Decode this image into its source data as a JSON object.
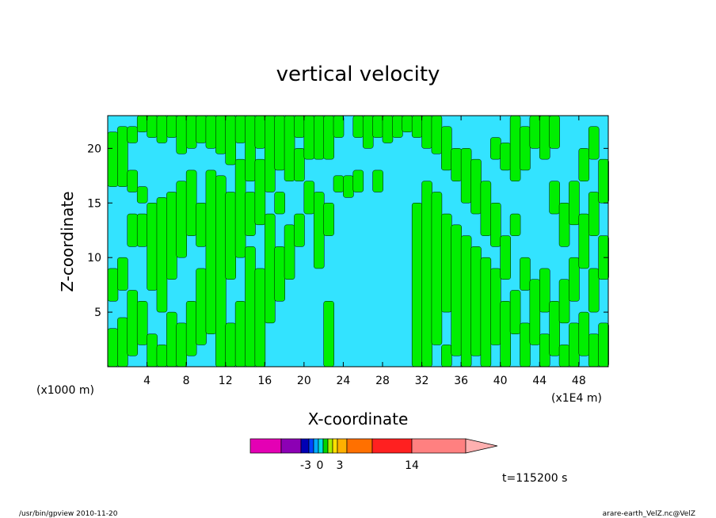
{
  "chart_data": {
    "type": "heatmap",
    "title": "vertical velocity",
    "xlabel": "X-coordinate",
    "ylabel": "Z-coordinate",
    "x_unit_label": "(x1E4 m)",
    "y_unit_label": "(x1000 m)",
    "xlim": [
      0,
      51
    ],
    "ylim": [
      0,
      23
    ],
    "x_ticks": [
      4,
      8,
      12,
      16,
      20,
      24,
      28,
      32,
      36,
      40,
      44,
      48
    ],
    "y_ticks": [
      5,
      10,
      15,
      20
    ],
    "timestamp": "t=115200 s",
    "colorbar": {
      "colors": [
        "#e400b4",
        "#8c00b4",
        "#0000b4",
        "#0044ff",
        "#00aaff",
        "#00e0e0",
        "#00d500",
        "#aaee00",
        "#ffe000",
        "#ffb000",
        "#ff7000",
        "#ff2020",
        "#ff8080",
        "#ffb0b0"
      ],
      "tick_labels": [
        "-3",
        "0",
        "3",
        "14"
      ],
      "tick_values": [
        -3,
        0,
        3,
        14
      ]
    },
    "field_colors": {
      "negative": "#33e3ff",
      "positive": "#00ef00",
      "contour": "#000000"
    },
    "columns": [
      {
        "x": 0,
        "bands": [
          [
            0,
            3.5
          ],
          [
            6,
            9
          ],
          [
            16.5,
            21.5
          ]
        ]
      },
      {
        "x": 1,
        "bands": [
          [
            0,
            4.5
          ],
          [
            7,
            10
          ],
          [
            16.5,
            22
          ]
        ]
      },
      {
        "x": 2,
        "bands": [
          [
            1,
            7
          ],
          [
            11,
            14
          ],
          [
            16,
            18
          ],
          [
            20.5,
            22
          ]
        ]
      },
      {
        "x": 3,
        "bands": [
          [
            2,
            6
          ],
          [
            11,
            14
          ],
          [
            15,
            16.5
          ],
          [
            21.5,
            23
          ]
        ]
      },
      {
        "x": 4,
        "bands": [
          [
            0,
            3
          ],
          [
            7,
            15
          ],
          [
            21,
            23
          ]
        ]
      },
      {
        "x": 5,
        "bands": [
          [
            0,
            2
          ],
          [
            5,
            15.5
          ],
          [
            20.5,
            23
          ]
        ]
      },
      {
        "x": 6,
        "bands": [
          [
            0,
            5
          ],
          [
            8,
            16
          ],
          [
            21,
            23
          ]
        ]
      },
      {
        "x": 7,
        "bands": [
          [
            0,
            4
          ],
          [
            10,
            17
          ],
          [
            19.5,
            23
          ]
        ]
      },
      {
        "x": 8,
        "bands": [
          [
            1,
            6
          ],
          [
            12,
            18
          ],
          [
            20,
            23
          ]
        ]
      },
      {
        "x": 9,
        "bands": [
          [
            2,
            9
          ],
          [
            11,
            15
          ],
          [
            20.5,
            23
          ]
        ]
      },
      {
        "x": 10,
        "bands": [
          [
            3,
            18
          ],
          [
            20,
            23
          ]
        ]
      },
      {
        "x": 11,
        "bands": [
          [
            0,
            17.5
          ],
          [
            19.5,
            23
          ]
        ]
      },
      {
        "x": 12,
        "bands": [
          [
            0,
            4
          ],
          [
            8,
            16
          ],
          [
            18.5,
            23
          ]
        ]
      },
      {
        "x": 13,
        "bands": [
          [
            0,
            6
          ],
          [
            10,
            19
          ],
          [
            20.5,
            23
          ]
        ]
      },
      {
        "x": 14,
        "bands": [
          [
            0,
            11
          ],
          [
            12,
            16
          ],
          [
            17,
            23
          ]
        ]
      },
      {
        "x": 15,
        "bands": [
          [
            0,
            9
          ],
          [
            13,
            19
          ],
          [
            20,
            23
          ]
        ]
      },
      {
        "x": 16,
        "bands": [
          [
            4,
            14
          ],
          [
            16,
            23
          ]
        ]
      },
      {
        "x": 17,
        "bands": [
          [
            6,
            11
          ],
          [
            14,
            16
          ],
          [
            18,
            23
          ]
        ]
      },
      {
        "x": 18,
        "bands": [
          [
            8,
            13
          ],
          [
            17,
            23
          ]
        ]
      },
      {
        "x": 19,
        "bands": [
          [
            11,
            14
          ],
          [
            17,
            20
          ],
          [
            21,
            23
          ]
        ]
      },
      {
        "x": 20,
        "bands": [
          [
            14,
            17
          ],
          [
            19,
            23
          ]
        ]
      },
      {
        "x": 21,
        "bands": [
          [
            9,
            16
          ],
          [
            19,
            23
          ]
        ]
      },
      {
        "x": 22,
        "bands": [
          [
            0,
            6
          ],
          [
            12,
            15
          ],
          [
            19,
            23
          ]
        ]
      },
      {
        "x": 23,
        "bands": [
          [
            16,
            17.5
          ],
          [
            21,
            23
          ]
        ]
      },
      {
        "x": 24,
        "bands": [
          [
            15.5,
            17.5
          ]
        ]
      },
      {
        "x": 25,
        "bands": [
          [
            16,
            18
          ],
          [
            21,
            23
          ]
        ]
      },
      {
        "x": 26,
        "bands": [
          [
            20,
            23
          ]
        ]
      },
      {
        "x": 27,
        "bands": [
          [
            16,
            18
          ],
          [
            21,
            23
          ]
        ]
      },
      {
        "x": 28,
        "bands": [
          [
            20.5,
            23
          ]
        ]
      },
      {
        "x": 29,
        "bands": [
          [
            21,
            23
          ]
        ]
      },
      {
        "x": 30,
        "bands": [
          [
            21.5,
            23
          ]
        ]
      },
      {
        "x": 31,
        "bands": [
          [
            0,
            15
          ],
          [
            21,
            23
          ]
        ]
      },
      {
        "x": 32,
        "bands": [
          [
            0,
            17
          ],
          [
            20,
            23
          ]
        ]
      },
      {
        "x": 33,
        "bands": [
          [
            2,
            16
          ],
          [
            19.5,
            23
          ]
        ]
      },
      {
        "x": 34,
        "bands": [
          [
            0,
            2
          ],
          [
            5,
            14
          ],
          [
            18,
            22
          ]
        ]
      },
      {
        "x": 35,
        "bands": [
          [
            1,
            13
          ],
          [
            17,
            20
          ]
        ]
      },
      {
        "x": 36,
        "bands": [
          [
            0,
            12
          ],
          [
            15,
            20
          ]
        ]
      },
      {
        "x": 37,
        "bands": [
          [
            1,
            11
          ],
          [
            14,
            19
          ]
        ]
      },
      {
        "x": 38,
        "bands": [
          [
            0,
            10
          ],
          [
            12,
            17
          ]
        ]
      },
      {
        "x": 39,
        "bands": [
          [
            2,
            9
          ],
          [
            11,
            15
          ],
          [
            19,
            21
          ]
        ]
      },
      {
        "x": 40,
        "bands": [
          [
            0,
            6
          ],
          [
            8,
            12
          ],
          [
            18,
            20.5
          ]
        ]
      },
      {
        "x": 41,
        "bands": [
          [
            3,
            7
          ],
          [
            12,
            14
          ],
          [
            17,
            23
          ]
        ]
      },
      {
        "x": 42,
        "bands": [
          [
            0,
            4
          ],
          [
            7,
            10
          ],
          [
            18,
            22
          ]
        ]
      },
      {
        "x": 43,
        "bands": [
          [
            2,
            8
          ],
          [
            20,
            23
          ]
        ]
      },
      {
        "x": 44,
        "bands": [
          [
            0,
            3
          ],
          [
            5,
            9
          ],
          [
            19,
            23
          ]
        ]
      },
      {
        "x": 45,
        "bands": [
          [
            1,
            6
          ],
          [
            14,
            17
          ],
          [
            20,
            23
          ]
        ]
      },
      {
        "x": 46,
        "bands": [
          [
            0,
            2
          ],
          [
            4,
            8
          ],
          [
            11,
            15
          ]
        ]
      },
      {
        "x": 47,
        "bands": [
          [
            0,
            4
          ],
          [
            6,
            10
          ],
          [
            13,
            17
          ]
        ]
      },
      {
        "x": 48,
        "bands": [
          [
            1,
            5
          ],
          [
            9,
            14
          ],
          [
            17,
            20
          ]
        ]
      },
      {
        "x": 49,
        "bands": [
          [
            0,
            3
          ],
          [
            5,
            9
          ],
          [
            12,
            16
          ],
          [
            19,
            22
          ]
        ]
      },
      {
        "x": 50,
        "bands": [
          [
            0,
            4
          ],
          [
            8,
            12
          ],
          [
            15,
            19
          ]
        ]
      }
    ]
  },
  "footer": {
    "left": "/usr/bin/gpview   2010-11-20",
    "right": "arare-earth_VelZ.nc@VelZ"
  }
}
